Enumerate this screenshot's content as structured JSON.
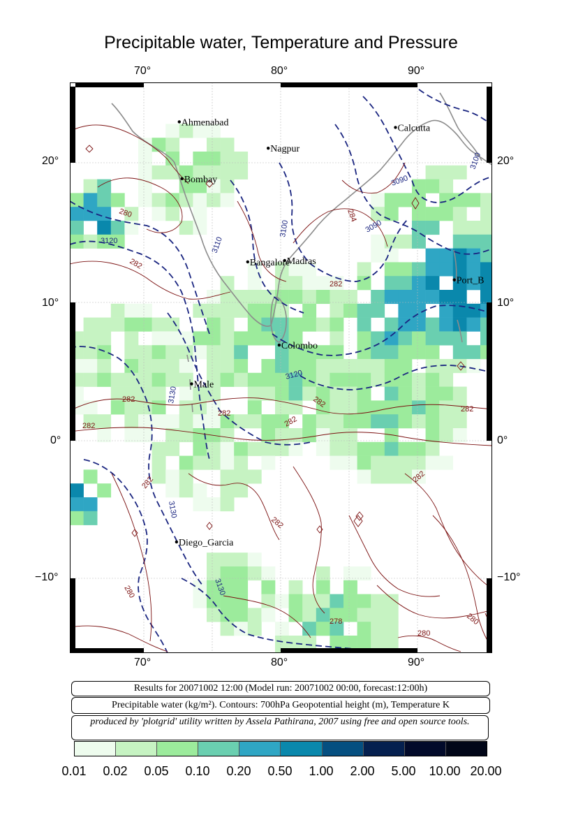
{
  "title": "Precipitable water, Temperature and Pressure",
  "axes": {
    "lon_labels": [
      "70°",
      "80°",
      "90°"
    ],
    "lat_labels": [
      "20°",
      "10°",
      "0°",
      "−10°"
    ],
    "lon_range": [
      65,
      96
    ],
    "lat_range": [
      -15,
      26
    ]
  },
  "cities": [
    {
      "name": "Ahmenabad",
      "lon": 72.6,
      "lat": 23.0
    },
    {
      "name": "Calcutta",
      "lon": 88.4,
      "lat": 22.6
    },
    {
      "name": "Nagpur",
      "lon": 79.1,
      "lat": 21.1
    },
    {
      "name": "Bombay",
      "lon": 72.8,
      "lat": 18.9
    },
    {
      "name": "Bangalore",
      "lon": 77.6,
      "lat": 12.9
    },
    {
      "name": "Madras",
      "lon": 80.3,
      "lat": 13.0
    },
    {
      "name": "Port_B",
      "lon": 92.7,
      "lat": 11.6
    },
    {
      "name": "Colombo",
      "lon": 79.9,
      "lat": 6.9
    },
    {
      "name": "Male",
      "lon": 73.5,
      "lat": 4.1
    },
    {
      "name": "Diego_Garcia",
      "lon": 72.4,
      "lat": -7.3
    }
  ],
  "contour_labels": {
    "geopotential": [
      "3120",
      "3110",
      "3100",
      "3090",
      "3130",
      "3090",
      "3100",
      "3120",
      "3130",
      "3130"
    ],
    "temperature": [
      "280",
      "282",
      "284",
      "282",
      "282",
      "282",
      "282",
      "282",
      "282",
      "282",
      "282",
      "282",
      "282",
      "280",
      "278",
      "280",
      "280"
    ]
  },
  "info": {
    "line1": "Results for 20071002 12:00 (Model run: 20071002 00:00, forecast:12:00h)",
    "line2": "Precipitable water (kg/m²).  Contours: 700hPa Geopotential height (m), Temperature K",
    "line3": "produced by 'plotgrid' utility written by Assela Pathirana, 2007 using free and open source tools."
  },
  "colorbar": {
    "labels": [
      "0.01",
      "0.02",
      "0.05",
      "0.10",
      "0.20",
      "0.50",
      "1.00",
      "2.00",
      "5.00",
      "10.00",
      "20.00"
    ],
    "colors": [
      "#eefcee",
      "#c6f3c2",
      "#9ceb9c",
      "#6acfb0",
      "#2fa6c4",
      "#0a88ac",
      "#054f80",
      "#05204f",
      "#020a2a",
      "#010618"
    ]
  }
}
